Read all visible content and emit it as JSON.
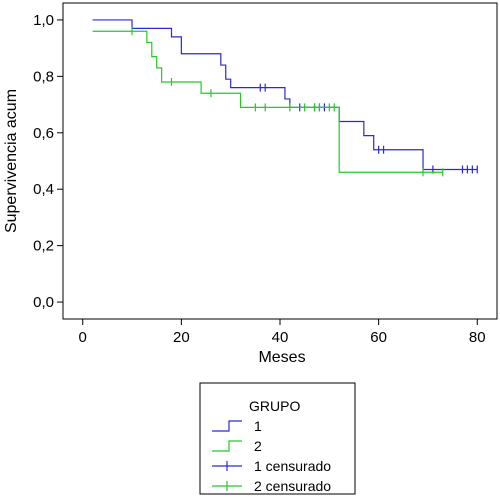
{
  "chart_data": {
    "type": "line",
    "subtype": "kaplan-meier-step",
    "title": "",
    "xlabel": "Meses",
    "ylabel": "Supervivencia acum",
    "xlim": [
      -4,
      84
    ],
    "ylim": [
      -0.06,
      1.06
    ],
    "xticks": [
      0,
      20,
      40,
      60,
      80
    ],
    "xtick_labels": [
      "0",
      "20",
      "40",
      "60",
      "80"
    ],
    "yticks": [
      0.0,
      0.2,
      0.4,
      0.6,
      0.8,
      1.0
    ],
    "ytick_labels": [
      "0,0",
      "0,2",
      "0,4",
      "0,6",
      "0,8",
      "1,0"
    ],
    "grid": false,
    "legend_placement": "bottom-center",
    "legend": {
      "title": "GRUPO",
      "entries": [
        "1",
        "2",
        "1 censurado",
        "2 censurado"
      ]
    },
    "series": [
      {
        "name": "1",
        "color": "#2a2ad4",
        "steps": [
          [
            2,
            1.0
          ],
          [
            10,
            0.97
          ],
          [
            18,
            0.94
          ],
          [
            20,
            0.88
          ],
          [
            28,
            0.84
          ],
          [
            29,
            0.79
          ],
          [
            30,
            0.76
          ],
          [
            41,
            0.72
          ],
          [
            42,
            0.69
          ],
          [
            52,
            0.64
          ],
          [
            57,
            0.59
          ],
          [
            59,
            0.54
          ],
          [
            69,
            0.47
          ],
          [
            80,
            0.47
          ]
        ],
        "censored": [
          [
            36,
            0.76
          ],
          [
            37,
            0.76
          ],
          [
            44,
            0.69
          ],
          [
            47,
            0.69
          ],
          [
            48,
            0.69
          ],
          [
            49,
            0.69
          ],
          [
            60,
            0.54
          ],
          [
            61,
            0.54
          ],
          [
            71,
            0.47
          ],
          [
            77,
            0.47
          ],
          [
            78,
            0.47
          ],
          [
            79,
            0.47
          ],
          [
            80,
            0.47
          ]
        ]
      },
      {
        "name": "2",
        "color": "#22cc22",
        "steps": [
          [
            2,
            0.96
          ],
          [
            13,
            0.92
          ],
          [
            14,
            0.87
          ],
          [
            15,
            0.83
          ],
          [
            16,
            0.78
          ],
          [
            24,
            0.74
          ],
          [
            32,
            0.69
          ],
          [
            52,
            0.46
          ],
          [
            73,
            0.46
          ]
        ],
        "censored": [
          [
            10,
            0.96
          ],
          [
            18,
            0.78
          ],
          [
            26,
            0.74
          ],
          [
            35,
            0.69
          ],
          [
            37,
            0.69
          ],
          [
            42,
            0.69
          ],
          [
            45,
            0.69
          ],
          [
            47,
            0.69
          ],
          [
            48,
            0.69
          ],
          [
            50,
            0.69
          ],
          [
            51,
            0.69
          ],
          [
            69,
            0.46
          ],
          [
            73,
            0.46
          ]
        ]
      }
    ]
  }
}
